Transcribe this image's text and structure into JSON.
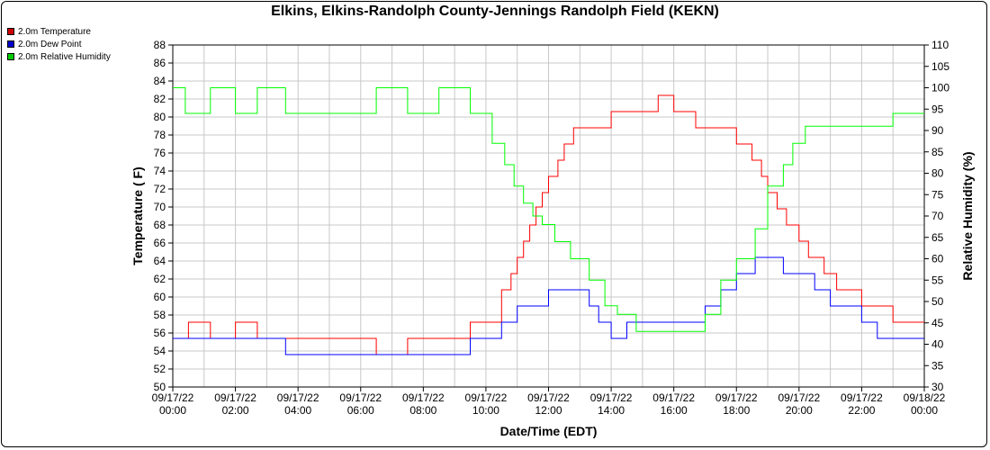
{
  "chart_data": {
    "type": "line",
    "title": "Elkins, Elkins-Randolph County-Jennings Randolph Field (KEKN)",
    "xlabel": "Date/Time (EDT)",
    "ylabel_left": "Temperature ( F)",
    "ylabel_right": "Relative Humidity (%)",
    "ylim_left": [
      50,
      88
    ],
    "ylim_right": [
      30,
      110
    ],
    "yticks_left": [
      "50",
      "52",
      "54",
      "56",
      "58",
      "60",
      "62",
      "64",
      "66",
      "68",
      "70",
      "72",
      "74",
      "76",
      "78",
      "80",
      "82",
      "84",
      "86",
      "88"
    ],
    "yticks_right": [
      "30",
      "35",
      "40",
      "45",
      "50",
      "55",
      "60",
      "65",
      "70",
      "75",
      "80",
      "85",
      "90",
      "95",
      "100",
      "105",
      "110"
    ],
    "xticks": [
      {
        "date": "09/17/22",
        "time": "00:00"
      },
      {
        "date": "09/17/22",
        "time": "02:00"
      },
      {
        "date": "09/17/22",
        "time": "04:00"
      },
      {
        "date": "09/17/22",
        "time": "06:00"
      },
      {
        "date": "09/17/22",
        "time": "08:00"
      },
      {
        "date": "09/17/22",
        "time": "10:00"
      },
      {
        "date": "09/17/22",
        "time": "12:00"
      },
      {
        "date": "09/17/22",
        "time": "14:00"
      },
      {
        "date": "09/17/22",
        "time": "16:00"
      },
      {
        "date": "09/17/22",
        "time": "18:00"
      },
      {
        "date": "09/17/22",
        "time": "20:00"
      },
      {
        "date": "09/17/22",
        "time": "22:00"
      },
      {
        "date": "09/18/22",
        "time": "00:00"
      }
    ],
    "xrange_hours": [
      0,
      24
    ],
    "grid": true,
    "legend_position": "top-left",
    "series": [
      {
        "name": "2.0m Temperature",
        "color": "#ff0000",
        "axis": "left",
        "x": [
          0,
          0.5,
          0.5,
          1.2,
          1.2,
          2.0,
          2.0,
          2.7,
          2.7,
          3.5,
          3.5,
          3.9,
          3.9,
          6.0,
          6.0,
          6.5,
          6.5,
          7.5,
          7.5,
          8.5,
          8.5,
          9.5,
          9.5,
          10.0,
          10.0,
          10.5,
          10.5,
          10.8,
          10.8,
          11.0,
          11.0,
          11.2,
          11.2,
          11.4,
          11.4,
          11.6,
          11.6,
          11.8,
          11.8,
          12.0,
          12.0,
          12.3,
          12.3,
          12.5,
          12.5,
          12.8,
          12.8,
          13.2,
          13.2,
          14.0,
          14.0,
          15.0,
          15.0,
          15.5,
          15.5,
          16.0,
          16.0,
          16.7,
          16.7,
          17.5,
          17.5,
          18.0,
          18.0,
          18.5,
          18.5,
          18.8,
          18.8,
          19.0,
          19.0,
          19.3,
          19.3,
          19.6,
          19.6,
          20.0,
          20.0,
          20.3,
          20.3,
          20.8,
          20.8,
          21.2,
          21.2,
          21.6,
          21.6,
          22.0,
          22.0,
          22.5,
          22.5,
          23.0,
          23.0,
          23.5,
          23.5,
          24.0
        ],
        "y": [
          55.4,
          55.4,
          57.2,
          57.2,
          55.4,
          55.4,
          57.2,
          57.2,
          55.4,
          55.4,
          55.4,
          55.4,
          55.4,
          55.4,
          55.4,
          55.4,
          53.6,
          53.6,
          55.4,
          55.4,
          55.4,
          55.4,
          57.2,
          57.2,
          57.2,
          57.2,
          60.8,
          60.8,
          62.6,
          62.6,
          64.4,
          64.4,
          66.2,
          66.2,
          68.0,
          68.0,
          70.0,
          70.0,
          71.6,
          71.6,
          73.4,
          73.4,
          75.2,
          75.2,
          77.0,
          77.0,
          78.8,
          78.8,
          78.8,
          78.8,
          80.6,
          80.6,
          80.6,
          80.6,
          82.4,
          82.4,
          80.6,
          80.6,
          78.8,
          78.8,
          78.8,
          78.8,
          77.0,
          77.0,
          75.2,
          75.2,
          73.4,
          73.4,
          71.6,
          71.6,
          69.8,
          69.8,
          68.0,
          68.0,
          66.2,
          66.2,
          64.4,
          64.4,
          62.6,
          62.6,
          60.8,
          60.8,
          60.8,
          60.8,
          59.0,
          59.0,
          59.0,
          59.0,
          57.2,
          57.2,
          57.2,
          57.2
        ]
      },
      {
        "name": "2.0m Dew Point",
        "color": "#0000ff",
        "axis": "left",
        "x": [
          0,
          3.6,
          3.6,
          4.0,
          4.0,
          8.5,
          8.5,
          9.5,
          9.5,
          10.0,
          10.0,
          10.5,
          10.5,
          11.0,
          11.0,
          12.0,
          12.0,
          13.3,
          13.3,
          13.6,
          13.6,
          14.0,
          14.0,
          14.5,
          14.5,
          15.0,
          15.0,
          15.5,
          15.5,
          16.5,
          16.5,
          17.0,
          17.0,
          17.5,
          17.5,
          18.0,
          18.0,
          18.6,
          18.6,
          19.0,
          19.0,
          19.5,
          19.5,
          20.0,
          20.0,
          20.5,
          20.5,
          21.0,
          21.0,
          21.5,
          21.5,
          22.0,
          22.0,
          22.5,
          22.5,
          23.0,
          23.0,
          24.0
        ],
        "y": [
          55.4,
          55.4,
          53.6,
          53.6,
          53.6,
          53.6,
          53.6,
          53.6,
          55.4,
          55.4,
          55.4,
          55.4,
          57.2,
          57.2,
          59.0,
          59.0,
          60.8,
          60.8,
          59.0,
          59.0,
          57.2,
          57.2,
          55.4,
          55.4,
          57.2,
          57.2,
          57.2,
          57.2,
          57.2,
          57.2,
          57.2,
          57.2,
          59.0,
          59.0,
          60.8,
          60.8,
          62.6,
          62.6,
          64.4,
          64.4,
          64.4,
          64.4,
          62.6,
          62.6,
          62.6,
          62.6,
          60.8,
          60.8,
          59.0,
          59.0,
          59.0,
          59.0,
          57.2,
          57.2,
          55.4,
          55.4,
          55.4,
          55.4
        ]
      },
      {
        "name": "2.0m Relative Humidity",
        "color": "#00ff00",
        "axis": "right",
        "x": [
          0,
          0.4,
          0.4,
          1.2,
          1.2,
          2.0,
          2.0,
          2.7,
          2.7,
          3.6,
          3.6,
          4.0,
          4.0,
          6.5,
          6.5,
          7.5,
          7.5,
          8.5,
          8.5,
          9.5,
          9.5,
          10.2,
          10.2,
          10.6,
          10.6,
          10.9,
          10.9,
          11.2,
          11.2,
          11.5,
          11.5,
          11.8,
          11.8,
          12.2,
          12.2,
          12.7,
          12.7,
          13.3,
          13.3,
          13.8,
          13.8,
          14.2,
          14.2,
          14.8,
          14.8,
          15.5,
          15.5,
          16.5,
          16.5,
          17.0,
          17.0,
          17.5,
          17.5,
          18.0,
          18.0,
          18.6,
          18.6,
          19.0,
          19.0,
          19.5,
          19.5,
          19.8,
          19.8,
          20.2,
          20.2,
          21.0,
          21.0,
          22.0,
          22.0,
          23.0,
          23.0,
          24.0
        ],
        "y": [
          100,
          100,
          94,
          94,
          100,
          100,
          94,
          94,
          100,
          100,
          94,
          94,
          94,
          94,
          100,
          100,
          94,
          94,
          100,
          100,
          94,
          94,
          87,
          87,
          82,
          82,
          77,
          77,
          73,
          73,
          70,
          70,
          68,
          68,
          64,
          64,
          60,
          60,
          55,
          55,
          49,
          49,
          47,
          47,
          43,
          43,
          43,
          43,
          43,
          43,
          47,
          47,
          55,
          55,
          60,
          60,
          67,
          67,
          77,
          77,
          82,
          82,
          87,
          87,
          91,
          91,
          91,
          91,
          91,
          91,
          94,
          94
        ]
      }
    ]
  },
  "legend": [
    {
      "label": "2.0m Temperature",
      "color": "#cc0000"
    },
    {
      "label": "2.0m Dew Point",
      "color": "#0000cc"
    },
    {
      "label": "2.0m Relative Humidity",
      "color": "#00cc00"
    }
  ]
}
